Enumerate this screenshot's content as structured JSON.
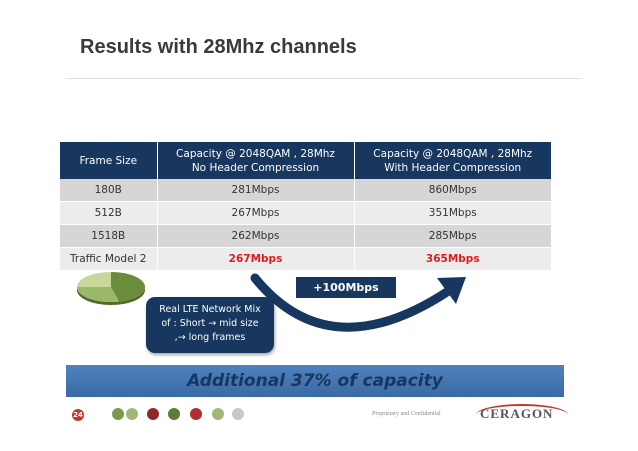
{
  "slide": {
    "title": "Results with 28Mhz channels",
    "page_number": "24",
    "footer": "Proprietary and Confidential",
    "logo_text": "CERAGON"
  },
  "table": {
    "headers": [
      "Frame Size",
      "Capacity @ 2048QAM , 28Mhz No Header Compression",
      "Capacity @ 2048QAM , 28Mhz With Header Compression"
    ],
    "header_lines": [
      [
        "Frame Size"
      ],
      [
        "Capacity @ 2048QAM , 28Mhz",
        "No Header Compression"
      ],
      [
        "Capacity @ 2048QAM , 28Mhz",
        "With Header Compression"
      ]
    ],
    "rows": [
      [
        "180B",
        "281Mbps",
        "860Mbps"
      ],
      [
        "512B",
        "267Mbps",
        "351Mbps"
      ],
      [
        "1518B",
        "262Mbps",
        "285Mbps"
      ],
      [
        "Traffic Model 2",
        "267Mbps",
        "365Mbps"
      ]
    ]
  },
  "gain_label": "+100Mbps",
  "callout_lines": [
    "Real LTE Network  Mix",
    "of : Short  → mid size",
    ",→ long frames"
  ],
  "banner": "Additional 37% of capacity",
  "colors": {
    "header_bg": "#17375e",
    "highlight": "#e01b1b",
    "banner_bg": "#4a7ab8",
    "banner_text": "#17375e"
  }
}
